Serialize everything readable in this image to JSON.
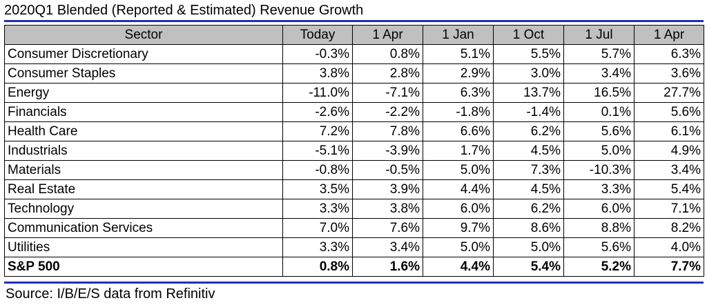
{
  "title": "2020Q1 Blended (Reported & Estimated) Revenue Growth",
  "source": "Source: I/B/E/S data from Refinitiv",
  "colors": {
    "rule": "#1f2fb8",
    "header_bg": "#c0c0c0"
  },
  "table": {
    "headers": [
      "Sector",
      "Today",
      "1 Apr",
      "1 Jan",
      "1 Oct",
      "1 Jul",
      "1 Apr"
    ],
    "rows": [
      [
        "Consumer Discretionary",
        "-0.3%",
        "0.8%",
        "5.1%",
        "5.5%",
        "5.7%",
        "6.3%"
      ],
      [
        "Consumer Staples",
        "3.8%",
        "2.8%",
        "2.9%",
        "3.0%",
        "3.4%",
        "3.6%"
      ],
      [
        "Energy",
        "-11.0%",
        "-7.1%",
        "6.3%",
        "13.7%",
        "16.5%",
        "27.7%"
      ],
      [
        "Financials",
        "-2.6%",
        "-2.2%",
        "-1.8%",
        "-1.4%",
        "0.1%",
        "5.6%"
      ],
      [
        "Health Care",
        "7.2%",
        "7.8%",
        "6.6%",
        "6.2%",
        "5.6%",
        "6.1%"
      ],
      [
        "Industrials",
        "-5.1%",
        "-3.9%",
        "1.7%",
        "4.5%",
        "5.0%",
        "4.9%"
      ],
      [
        "Materials",
        "-0.8%",
        "-0.5%",
        "5.0%",
        "7.3%",
        "-10.3%",
        "3.4%"
      ],
      [
        "Real Estate",
        "3.5%",
        "3.9%",
        "4.4%",
        "4.5%",
        "3.3%",
        "5.4%"
      ],
      [
        "Technology",
        "3.3%",
        "3.8%",
        "6.0%",
        "6.2%",
        "6.0%",
        "7.1%"
      ],
      [
        "Communication Services",
        "7.0%",
        "7.6%",
        "9.7%",
        "8.6%",
        "8.8%",
        "8.2%"
      ],
      [
        "Utilities",
        "3.3%",
        "3.4%",
        "5.0%",
        "5.0%",
        "5.6%",
        "4.0%"
      ]
    ],
    "total": [
      "S&P 500",
      "0.8%",
      "1.6%",
      "4.4%",
      "5.4%",
      "5.2%",
      "7.7%"
    ]
  }
}
